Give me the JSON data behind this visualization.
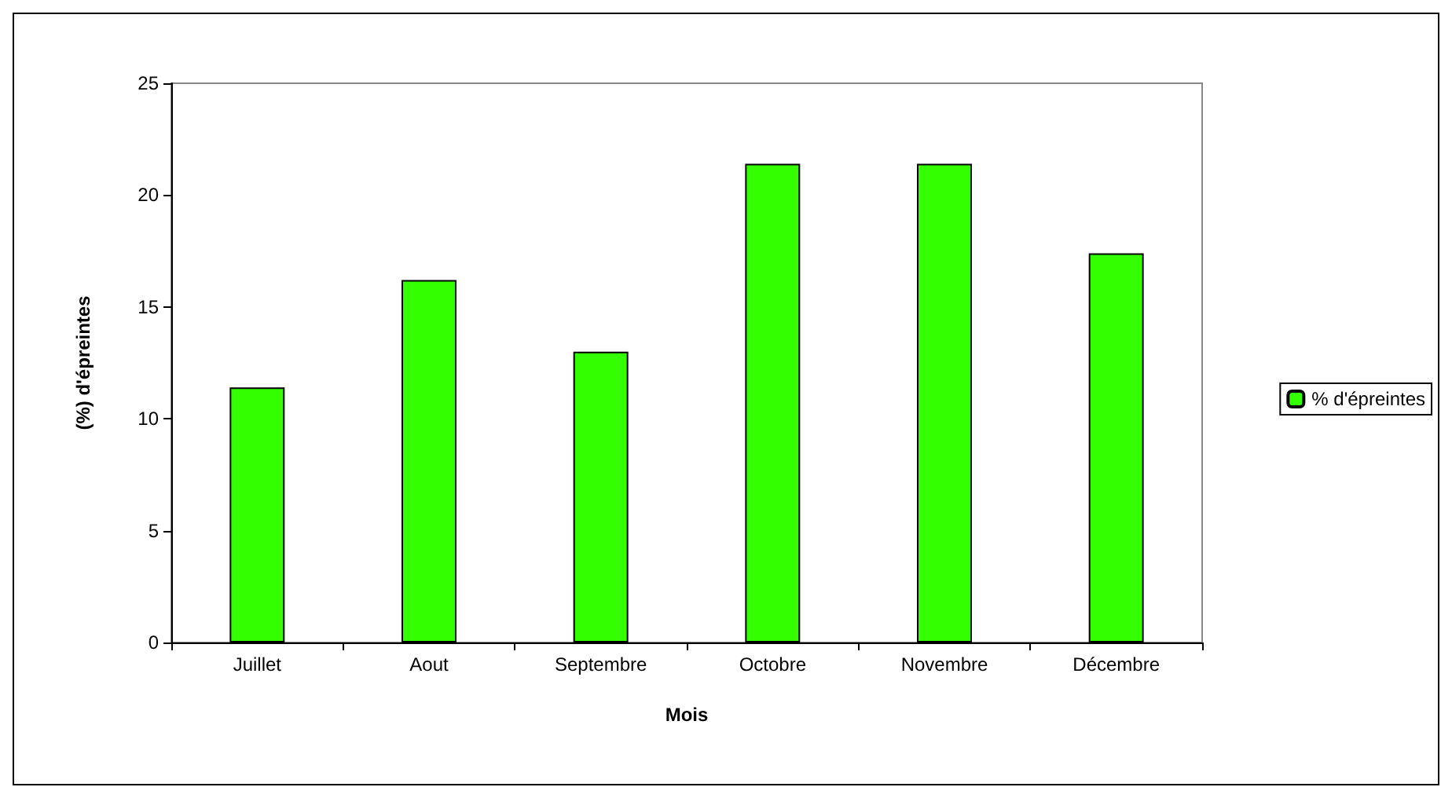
{
  "chart_data": {
    "type": "bar",
    "xlabel": "Mois",
    "ylabel": "(%) d'épreintes",
    "categories": [
      "Juillet",
      "Aout",
      "Septembre",
      "Octobre",
      "Novembre",
      "Décembre"
    ],
    "series": [
      {
        "name": "% d'épreintes",
        "color": "#33ff00",
        "values": [
          11.4,
          16.2,
          13.0,
          21.4,
          21.4,
          17.4
        ]
      }
    ],
    "ylim": [
      0,
      25
    ],
    "yticks": [
      0,
      5,
      10,
      15,
      20,
      25
    ],
    "grid": false,
    "legend": "right"
  }
}
